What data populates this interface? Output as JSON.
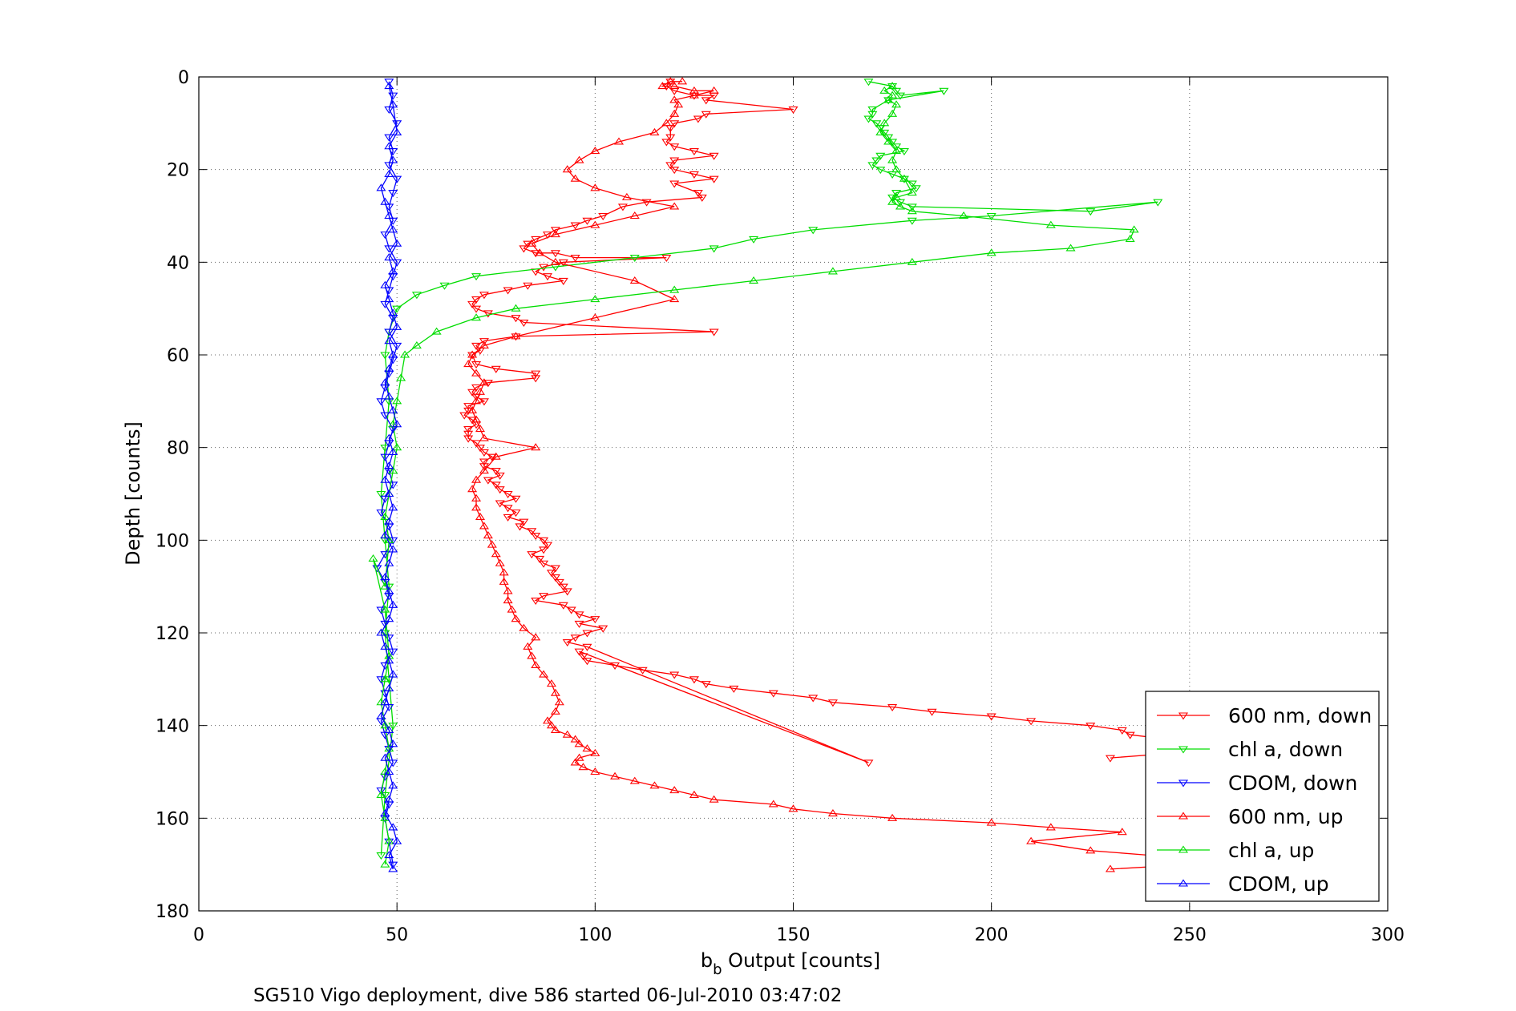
{
  "chart_data": {
    "type": "line",
    "title": "",
    "caption": "SG510 Vigo deployment, dive 586 started 06-Jul-2010 03:47:02",
    "xlabel": {
      "main": "b",
      "sub": "b",
      "rest": " Output [counts]"
    },
    "ylabel": "Depth [counts]",
    "xlim": [
      0,
      300
    ],
    "ylim": [
      0,
      180
    ],
    "y_reversed": true,
    "grid": true,
    "legend_position": "bottom-right",
    "x_ticks": [
      0,
      50,
      100,
      150,
      200,
      250,
      300
    ],
    "y_ticks": [
      0,
      20,
      40,
      60,
      80,
      100,
      120,
      140,
      160,
      180
    ],
    "series": [
      {
        "name": "600 nm, down",
        "color": "#ff0000",
        "marker": "triangle-down",
        "x": [
          119,
          118,
          120,
          125,
          130,
          128,
          150,
          128,
          126,
          120,
          119,
          119,
          118,
          120,
          125,
          130,
          120,
          119,
          120,
          125,
          130,
          120,
          126,
          127,
          113,
          107,
          102,
          98,
          95,
          90,
          88,
          85,
          83,
          82,
          85,
          90,
          95,
          118,
          92,
          87,
          85,
          88,
          92,
          83,
          78,
          72,
          70,
          69,
          70,
          73,
          80,
          82,
          130,
          80,
          72,
          70,
          71,
          69,
          70,
          75,
          85,
          85,
          73,
          70,
          69,
          70,
          72,
          68,
          68,
          67,
          69,
          70,
          68,
          68,
          68,
          70,
          71,
          72,
          74,
          72,
          72,
          75,
          76,
          73,
          75,
          76,
          78,
          80,
          76,
          78,
          80,
          78,
          82,
          81,
          84,
          85,
          87,
          88,
          87,
          84,
          86,
          87,
          90,
          89,
          90,
          91,
          92,
          93,
          87,
          85,
          92,
          94,
          96,
          100,
          96,
          102,
          98,
          95,
          93,
          98,
          169,
          96,
          97,
          98,
          105,
          112,
          120,
          125,
          128,
          135,
          145,
          155,
          160,
          175,
          185,
          200,
          210,
          225,
          233,
          235,
          245,
          250,
          255,
          245,
          230
        ],
        "y": [
          1,
          2,
          3,
          4,
          4,
          5,
          7,
          8,
          9,
          10,
          11,
          13,
          14,
          15,
          16,
          17,
          18,
          19,
          20,
          21,
          22,
          23,
          25,
          26,
          27,
          28,
          30,
          31,
          32,
          33,
          34,
          35,
          36,
          37,
          38,
          38,
          39,
          39,
          40,
          41,
          42,
          43,
          44,
          45,
          46,
          47,
          48,
          49,
          50,
          51,
          52,
          53,
          55,
          56,
          57,
          58,
          59,
          60,
          62,
          63,
          64,
          65,
          66,
          67,
          68,
          69,
          70,
          71,
          72,
          73,
          74,
          75,
          76,
          77,
          78,
          79,
          80,
          81,
          82,
          83,
          84,
          85,
          86,
          87,
          88,
          89,
          90,
          91,
          92,
          93,
          94,
          95,
          96,
          97,
          98,
          99,
          100,
          101,
          102,
          103,
          104,
          105,
          106,
          107,
          108,
          109,
          110,
          111,
          112,
          113,
          114,
          115,
          116,
          117,
          118,
          119,
          120,
          121,
          122,
          123,
          148,
          124,
          125,
          126,
          127,
          128,
          129,
          130,
          131,
          132,
          133,
          134,
          135,
          136,
          137,
          138,
          139,
          140,
          141,
          142,
          143,
          144,
          145,
          146,
          147
        ]
      },
      {
        "name": "chl a, down",
        "color": "#00dd00",
        "marker": "triangle-down",
        "x": [
          169,
          175,
          176,
          177,
          188,
          174,
          170,
          170,
          169,
          171,
          172,
          173,
          174,
          175,
          176,
          178,
          172,
          171,
          170,
          172,
          175,
          178,
          180,
          181,
          176,
          175,
          177,
          180,
          225,
          242,
          200,
          180,
          155,
          140,
          130,
          110,
          90,
          70,
          62,
          55,
          50,
          48,
          47,
          48,
          47,
          46,
          47,
          48,
          47,
          48,
          49,
          47,
          46
        ],
        "y": [
          1,
          2,
          3,
          4,
          3,
          5,
          7,
          8,
          9,
          10,
          11,
          12,
          13,
          14,
          15,
          16,
          17,
          18,
          19,
          20,
          21,
          22,
          23,
          24,
          25,
          26,
          27,
          28,
          29,
          27,
          30,
          31,
          33,
          35,
          37,
          39,
          41,
          43,
          45,
          47,
          50,
          55,
          60,
          70,
          80,
          90,
          100,
          110,
          120,
          130,
          140,
          155,
          168
        ]
      },
      {
        "name": "CDOM, down",
        "color": "#0000ff",
        "marker": "triangle-down",
        "x": [
          48,
          49,
          48,
          50,
          48,
          49,
          48,
          50,
          49,
          48,
          49,
          47,
          48,
          50,
          49,
          48,
          47,
          49,
          48,
          50,
          49,
          48,
          47,
          46,
          47,
          49,
          48,
          47,
          48,
          49,
          47,
          46,
          48,
          49,
          47,
          45,
          47,
          48,
          46,
          47,
          48,
          49,
          47,
          46,
          47,
          48,
          46,
          47,
          48,
          49,
          47,
          46,
          48,
          47,
          48,
          49
        ],
        "y": [
          1,
          4,
          7,
          10,
          13,
          16,
          19,
          22,
          25,
          28,
          31,
          34,
          37,
          40,
          43,
          46,
          49,
          52,
          55,
          58,
          61,
          64,
          67,
          70,
          73,
          76,
          79,
          82,
          85,
          88,
          91,
          94,
          97,
          100,
          103,
          106,
          109,
          112,
          115,
          118,
          121,
          124,
          127,
          130,
          133,
          136,
          139,
          142,
          145,
          148,
          151,
          154,
          157,
          160,
          165,
          170
        ]
      },
      {
        "name": "600 nm, up",
        "color": "#ff0000",
        "marker": "triangle-up",
        "x": [
          230,
          250,
          255,
          240,
          225,
          210,
          233,
          215,
          200,
          175,
          160,
          150,
          145,
          130,
          125,
          120,
          115,
          110,
          105,
          100,
          97,
          95,
          96,
          100,
          98,
          96,
          95,
          93,
          90,
          89,
          88,
          90,
          91,
          90,
          89,
          87,
          85,
          84,
          83,
          85,
          82,
          80,
          79,
          78,
          78,
          77,
          77,
          76,
          75,
          74,
          73,
          72,
          71,
          70,
          70,
          69,
          70,
          72,
          75,
          85,
          72,
          71,
          70,
          69,
          70,
          71,
          72,
          70,
          68,
          69,
          72,
          80,
          100,
          120,
          110,
          90,
          86,
          84,
          90,
          100,
          110,
          120,
          108,
          100,
          95,
          93,
          96,
          100,
          106,
          115,
          118,
          120,
          121,
          120,
          125,
          130,
          125,
          120,
          117,
          119,
          122
        ],
        "y": [
          171,
          170,
          169,
          168,
          167,
          165,
          163,
          162,
          161,
          160,
          159,
          158,
          157,
          156,
          155,
          154,
          153,
          152,
          151,
          150,
          149,
          148,
          147,
          146,
          145,
          144,
          143,
          142,
          141,
          140,
          139,
          137,
          135,
          133,
          131,
          129,
          127,
          125,
          123,
          121,
          119,
          117,
          115,
          113,
          111,
          109,
          107,
          105,
          103,
          101,
          99,
          97,
          95,
          93,
          91,
          89,
          87,
          85,
          82,
          80,
          78,
          76,
          74,
          72,
          70,
          68,
          66,
          64,
          62,
          60,
          58,
          56,
          52,
          48,
          44,
          40,
          38,
          36,
          34,
          32,
          30,
          28,
          26,
          24,
          22,
          20,
          18,
          16,
          14,
          12,
          10,
          8,
          6,
          5,
          4,
          3,
          3,
          2,
          2,
          1,
          1
        ]
      },
      {
        "name": "chl a, up",
        "color": "#00dd00",
        "marker": "triangle-up",
        "x": [
          47,
          48,
          47,
          46,
          47,
          48,
          47,
          46,
          47,
          48,
          47,
          44,
          47,
          48,
          47,
          48,
          49,
          50,
          49,
          50,
          51,
          52,
          55,
          60,
          70,
          80,
          100,
          120,
          140,
          160,
          180,
          200,
          220,
          235,
          236,
          215,
          193,
          180,
          177,
          175,
          176,
          180,
          178,
          176,
          175,
          176,
          174,
          172,
          173,
          175,
          176,
          174,
          175,
          173,
          175
        ],
        "y": [
          170,
          165,
          160,
          155,
          150,
          145,
          140,
          135,
          130,
          125,
          115,
          104,
          110,
          100,
          95,
          90,
          85,
          80,
          75,
          70,
          65,
          60,
          58,
          55,
          52,
          50,
          48,
          46,
          44,
          42,
          40,
          38,
          37,
          35,
          33,
          32,
          30,
          29,
          28,
          27,
          26,
          25,
          22,
          20,
          18,
          16,
          14,
          12,
          10,
          8,
          6,
          5,
          4,
          3,
          2
        ]
      },
      {
        "name": "CDOM, up",
        "color": "#0000ff",
        "marker": "triangle-up",
        "x": [
          49,
          48,
          50,
          49,
          47,
          48,
          49,
          48,
          47,
          49,
          48,
          46,
          47,
          48,
          49,
          48,
          47,
          46,
          48,
          49,
          48,
          47,
          48,
          49,
          47,
          48,
          49,
          48,
          47,
          48,
          49,
          48,
          50,
          49,
          48,
          47,
          48,
          49,
          48,
          50,
          49,
          48,
          47,
          49,
          48,
          50,
          49,
          48,
          47,
          46,
          48,
          49,
          48,
          50,
          49,
          48
        ],
        "y": [
          171,
          168,
          165,
          162,
          159,
          156,
          153,
          150,
          147,
          144,
          141,
          138,
          135,
          132,
          129,
          126,
          123,
          120,
          117,
          114,
          111,
          108,
          105,
          102,
          99,
          96,
          93,
          90,
          87,
          84,
          81,
          78,
          75,
          72,
          69,
          66,
          63,
          60,
          57,
          54,
          51,
          48,
          45,
          42,
          39,
          36,
          33,
          30,
          27,
          24,
          21,
          18,
          15,
          12,
          6,
          2
        ]
      }
    ]
  }
}
